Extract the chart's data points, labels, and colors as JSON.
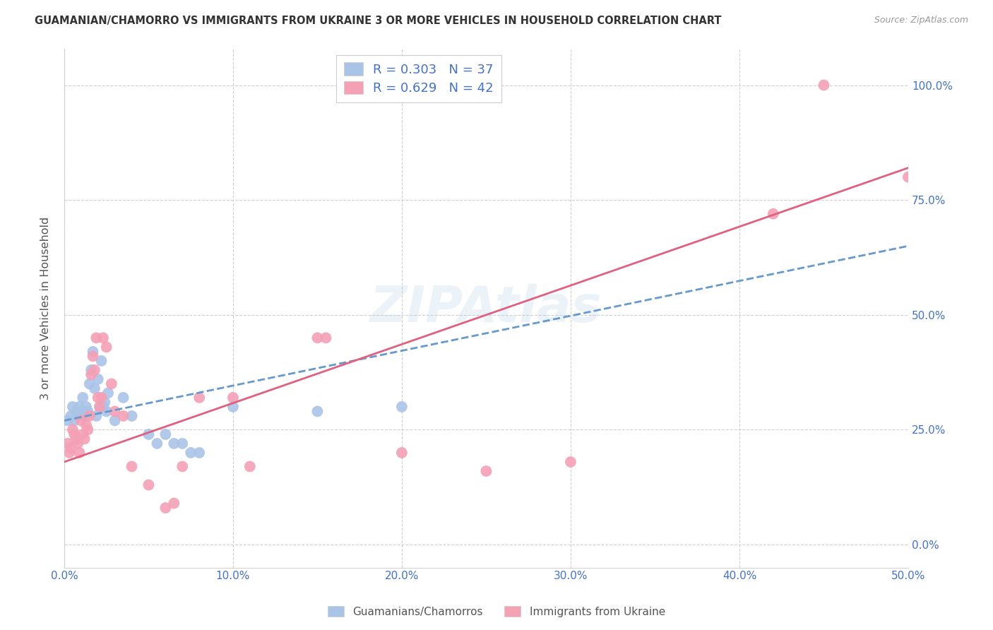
{
  "title": "GUAMANIAN/CHAMORRO VS IMMIGRANTS FROM UKRAINE 3 OR MORE VEHICLES IN HOUSEHOLD CORRELATION CHART",
  "source": "Source: ZipAtlas.com",
  "xlabel_ticks": [
    "0.0%",
    "10.0%",
    "20.0%",
    "30.0%",
    "40.0%",
    "50.0%"
  ],
  "ylabel_ticks": [
    "0.0%",
    "25.0%",
    "50.0%",
    "75.0%",
    "100.0%"
  ],
  "ylabel_label": "3 or more Vehicles in Household",
  "xlim": [
    0,
    50
  ],
  "ylim": [
    -5,
    108
  ],
  "x_tick_vals": [
    0,
    10,
    20,
    30,
    40,
    50
  ],
  "y_tick_vals": [
    0,
    25,
    50,
    75,
    100
  ],
  "legend_line1": "R = 0.303   N = 37",
  "legend_line2": "R = 0.629   N = 42",
  "blue_color": "#aac4e8",
  "pink_color": "#f4a0b5",
  "blue_line_color": "#6699cc",
  "pink_line_color": "#e06080",
  "blue_scatter": [
    [
      0.2,
      27
    ],
    [
      0.4,
      28
    ],
    [
      0.5,
      30
    ],
    [
      0.6,
      27
    ],
    [
      0.7,
      29
    ],
    [
      0.8,
      28
    ],
    [
      0.9,
      30
    ],
    [
      1.0,
      29
    ],
    [
      1.1,
      32
    ],
    [
      1.2,
      28
    ],
    [
      1.3,
      30
    ],
    [
      1.4,
      29
    ],
    [
      1.5,
      35
    ],
    [
      1.6,
      38
    ],
    [
      1.7,
      42
    ],
    [
      1.8,
      34
    ],
    [
      1.9,
      28
    ],
    [
      2.0,
      36
    ],
    [
      2.1,
      30
    ],
    [
      2.2,
      40
    ],
    [
      2.3,
      30
    ],
    [
      2.4,
      31
    ],
    [
      2.5,
      29
    ],
    [
      2.6,
      33
    ],
    [
      3.0,
      27
    ],
    [
      3.5,
      32
    ],
    [
      4.0,
      28
    ],
    [
      5.0,
      24
    ],
    [
      5.5,
      22
    ],
    [
      6.0,
      24
    ],
    [
      6.5,
      22
    ],
    [
      7.0,
      22
    ],
    [
      7.5,
      20
    ],
    [
      8.0,
      20
    ],
    [
      10.0,
      30
    ],
    [
      15.0,
      29
    ],
    [
      20.0,
      30
    ]
  ],
  "pink_scatter": [
    [
      0.2,
      22
    ],
    [
      0.3,
      20
    ],
    [
      0.4,
      21
    ],
    [
      0.5,
      25
    ],
    [
      0.6,
      24
    ],
    [
      0.7,
      23
    ],
    [
      0.8,
      22
    ],
    [
      0.9,
      20
    ],
    [
      1.0,
      27
    ],
    [
      1.1,
      24
    ],
    [
      1.2,
      23
    ],
    [
      1.3,
      26
    ],
    [
      1.4,
      25
    ],
    [
      1.5,
      28
    ],
    [
      1.6,
      37
    ],
    [
      1.7,
      41
    ],
    [
      1.8,
      38
    ],
    [
      1.9,
      45
    ],
    [
      2.0,
      32
    ],
    [
      2.1,
      30
    ],
    [
      2.2,
      32
    ],
    [
      2.3,
      45
    ],
    [
      2.5,
      43
    ],
    [
      2.8,
      35
    ],
    [
      3.0,
      29
    ],
    [
      3.5,
      28
    ],
    [
      4.0,
      17
    ],
    [
      5.0,
      13
    ],
    [
      6.0,
      8
    ],
    [
      6.5,
      9
    ],
    [
      7.0,
      17
    ],
    [
      8.0,
      32
    ],
    [
      10.0,
      32
    ],
    [
      11.0,
      17
    ],
    [
      15.0,
      45
    ],
    [
      15.5,
      45
    ],
    [
      20.0,
      20
    ],
    [
      25.0,
      16
    ],
    [
      30.0,
      18
    ],
    [
      42.0,
      72
    ],
    [
      45.0,
      100
    ],
    [
      50.0,
      80
    ]
  ],
  "watermark": "ZIPAtlas",
  "background_color": "#ffffff",
  "grid_color": "#d0d0d0"
}
